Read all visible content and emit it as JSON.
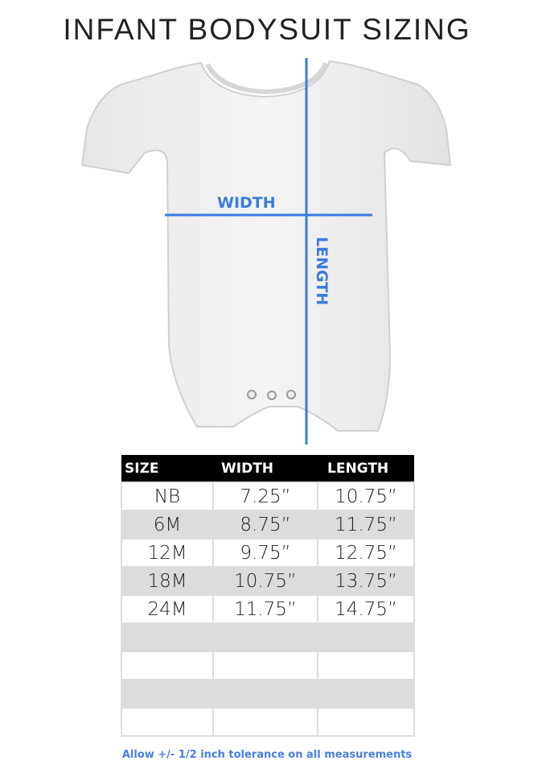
{
  "title": "INFANT BODYSUIT SIZING",
  "diagram": {
    "width_label": "WIDTH",
    "length_label": "LENGTH",
    "line_color": "#3a7be0"
  },
  "table": {
    "headers": [
      "SIZE",
      "WIDTH",
      "LENGTH"
    ],
    "rows": [
      [
        "NB",
        "7.25”",
        "10.75”"
      ],
      [
        "6M",
        "8.75”",
        "11.75”"
      ],
      [
        "12M",
        "9.75”",
        "12.75”"
      ],
      [
        "18M",
        "10.75”",
        "13.75”"
      ],
      [
        "24M",
        "11.75”",
        "14.75”"
      ],
      [
        "",
        "",
        ""
      ],
      [
        "",
        "",
        ""
      ],
      [
        "",
        "",
        ""
      ],
      [
        "",
        "",
        ""
      ]
    ]
  },
  "footnote": "Allow +/- 1/2 inch tolerance on all measurements"
}
